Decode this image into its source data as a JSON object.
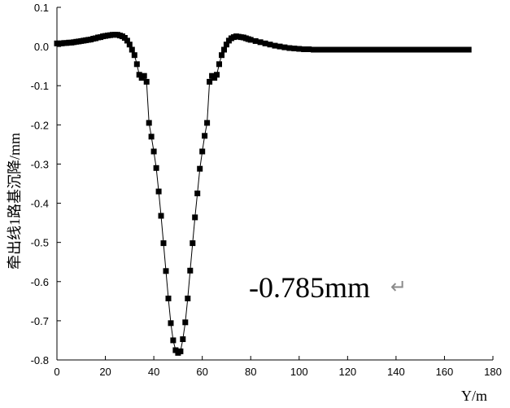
{
  "chart_data": {
    "type": "line",
    "xlabel": "Y/m",
    "ylabel": "牵出线1路基沉降/mm",
    "xlim": [
      0,
      180
    ],
    "ylim": [
      -0.8,
      0.1
    ],
    "xticks": [
      0,
      20,
      40,
      60,
      80,
      100,
      120,
      140,
      160,
      180
    ],
    "yticks": [
      0.1,
      0.0,
      -0.1,
      -0.2,
      -0.3,
      -0.4,
      -0.5,
      -0.6,
      -0.7,
      -0.8
    ],
    "xtick_labels": [
      "0",
      "20",
      "40",
      "60",
      "80",
      "100",
      "120",
      "140",
      "160",
      "180"
    ],
    "ytick_labels": [
      "0.1",
      "0.0",
      "-0.1",
      "-0.2",
      "-0.3",
      "-0.4",
      "-0.5",
      "-0.6",
      "-0.7",
      "-0.8"
    ],
    "grid": false,
    "marker": "square",
    "annotation": "-0.785mm",
    "series": [
      {
        "x": [
          0,
          1,
          2,
          3,
          4,
          5,
          6,
          7,
          8,
          9,
          10,
          11,
          12,
          13,
          14,
          15,
          16,
          17,
          18,
          19,
          20,
          21,
          22,
          23,
          24,
          25,
          26,
          27,
          28,
          29,
          30,
          31,
          32,
          33,
          34,
          35,
          36,
          37,
          38,
          39,
          40,
          41,
          42,
          43,
          44,
          45,
          46,
          47,
          48,
          49,
          50,
          51,
          52,
          53,
          54,
          55,
          56,
          57,
          58,
          59,
          60,
          61,
          62,
          63,
          64,
          65,
          66,
          67,
          68,
          69,
          70,
          71,
          72,
          73,
          74,
          75,
          76,
          77,
          78,
          79,
          80,
          82,
          84,
          86,
          88,
          90,
          92,
          94,
          96,
          98,
          100,
          102,
          104,
          106,
          108,
          110,
          112,
          114,
          116,
          118,
          120,
          122,
          124,
          126,
          128,
          130,
          132,
          134,
          136,
          138,
          140,
          142,
          144,
          146,
          148,
          150,
          152,
          154,
          156,
          158,
          160,
          162,
          164,
          166,
          168,
          170
        ],
        "y": [
          0.008,
          0.008,
          0.008,
          0.009,
          0.009,
          0.01,
          0.01,
          0.011,
          0.012,
          0.013,
          0.014,
          0.015,
          0.016,
          0.017,
          0.018,
          0.02,
          0.021,
          0.023,
          0.024,
          0.026,
          0.027,
          0.028,
          0.029,
          0.03,
          0.03,
          0.03,
          0.028,
          0.026,
          0.022,
          0.015,
          0.005,
          -0.008,
          -0.022,
          -0.045,
          -0.072,
          -0.08,
          -0.075,
          -0.09,
          -0.195,
          -0.23,
          -0.268,
          -0.31,
          -0.37,
          -0.432,
          -0.502,
          -0.573,
          -0.643,
          -0.706,
          -0.75,
          -0.775,
          -0.782,
          -0.778,
          -0.747,
          -0.704,
          -0.643,
          -0.572,
          -0.502,
          -0.436,
          -0.375,
          -0.312,
          -0.268,
          -0.228,
          -0.195,
          -0.09,
          -0.075,
          -0.08,
          -0.072,
          -0.045,
          -0.022,
          -0.008,
          0.005,
          0.015,
          0.021,
          0.024,
          0.026,
          0.025,
          0.024,
          0.023,
          0.021,
          0.019,
          0.017,
          0.014,
          0.011,
          0.008,
          0.005,
          0.002,
          -0.0,
          -0.002,
          -0.004,
          -0.005,
          -0.006,
          -0.007,
          -0.007,
          -0.008,
          -0.008,
          -0.008,
          -0.008,
          -0.008,
          -0.008,
          -0.008,
          -0.008,
          -0.008,
          -0.008,
          -0.008,
          -0.008,
          -0.008,
          -0.008,
          -0.008,
          -0.008,
          -0.008,
          -0.008,
          -0.008,
          -0.008,
          -0.008,
          -0.008,
          -0.008,
          -0.008,
          -0.008,
          -0.008,
          -0.008,
          -0.008,
          -0.008,
          -0.008,
          -0.008,
          -0.008,
          -0.008
        ]
      }
    ]
  }
}
